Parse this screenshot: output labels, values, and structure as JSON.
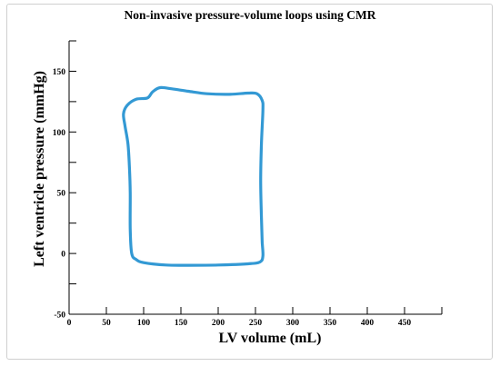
{
  "chart_data": {
    "type": "line",
    "title": "Non-invasive pressure-volume loops using CMR",
    "xlabel": "LV volume (mL)",
    "ylabel": "Left ventricle pressure (mmHg)",
    "xlim": [
      0,
      500
    ],
    "ylim": [
      -50,
      175
    ],
    "xticks": [
      0,
      50,
      100,
      150,
      200,
      250,
      300,
      350,
      400,
      450
    ],
    "yticks": [
      -50,
      0,
      50,
      100,
      150
    ],
    "grid": false,
    "color": "#3399d4",
    "series": [
      {
        "closed": true,
        "points": [
          [
            105,
            128
          ],
          [
            112,
            133
          ],
          [
            122,
            136.5
          ],
          [
            138,
            135.5
          ],
          [
            160,
            133.5
          ],
          [
            185,
            131.5
          ],
          [
            215,
            131
          ],
          [
            240,
            132
          ],
          [
            252,
            131.5
          ],
          [
            259,
            126
          ],
          [
            260,
            118
          ],
          [
            258,
            90
          ],
          [
            257,
            60
          ],
          [
            258,
            30
          ],
          [
            259,
            10
          ],
          [
            260,
            -2
          ],
          [
            256,
            -7
          ],
          [
            240,
            -8.5
          ],
          [
            200,
            -9.5
          ],
          [
            160,
            -9.7
          ],
          [
            130,
            -9.5
          ],
          [
            100,
            -7.5
          ],
          [
            90,
            -5
          ],
          [
            84,
            0
          ],
          [
            82,
            20
          ],
          [
            82,
            50
          ],
          [
            81,
            70
          ],
          [
            79,
            90
          ],
          [
            75,
            105
          ],
          [
            73,
            115
          ],
          [
            78,
            122
          ],
          [
            90,
            127
          ]
        ]
      }
    ]
  }
}
